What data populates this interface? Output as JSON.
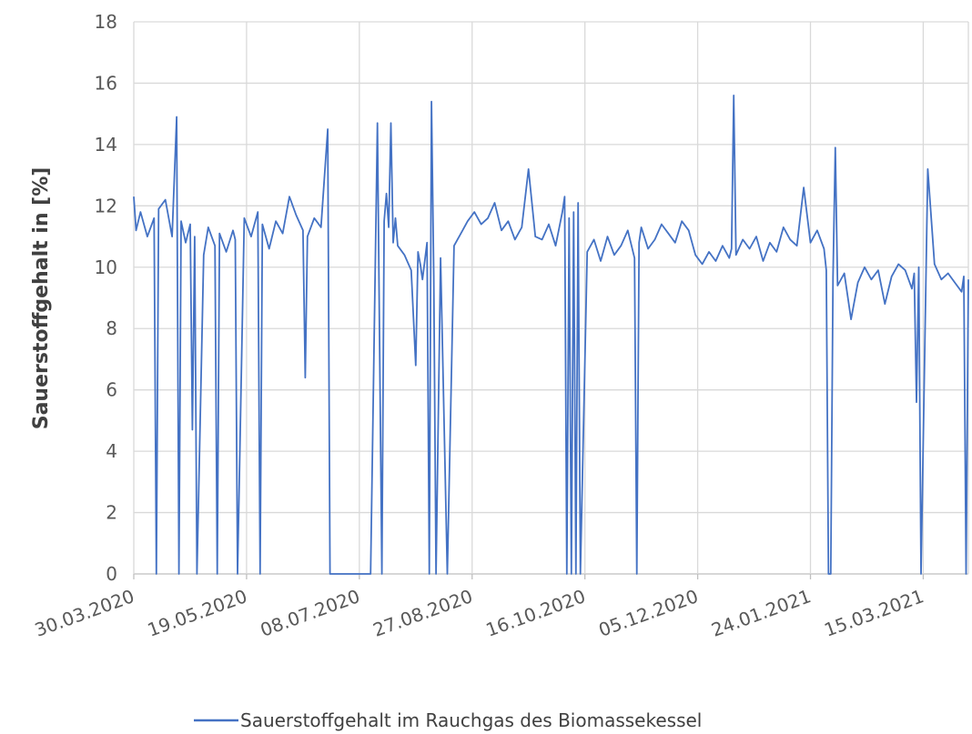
{
  "chart_data": {
    "type": "line",
    "title": "",
    "ylabel": "Sauerstoffgehalt in [%]",
    "xlabel": "",
    "ylim": [
      0,
      18
    ],
    "yticks": [
      0,
      2,
      4,
      6,
      8,
      10,
      12,
      14,
      16,
      18
    ],
    "xlim": [
      "30.03.2020",
      "04.04.2021"
    ],
    "xticks": [
      "30.03.2020",
      "19.05.2020",
      "08.07.2020",
      "27.08.2020",
      "16.10.2020",
      "05.12.2020",
      "24.01.2021",
      "15.03.2021"
    ],
    "grid": true,
    "legend_position": "bottom",
    "colors": {
      "series": "#4472C4",
      "grid": "#D9D9D9",
      "axis": "#BFBFBF"
    },
    "series": [
      {
        "name": "Sauerstoffgehalt im Rauchgas des Biomassekessel",
        "x": [
          "30.03.2020",
          "31.03.2020",
          "02.04.2020",
          "05.04.2020",
          "08.04.2020",
          "09.04.2020",
          "10.04.2020",
          "13.04.2020",
          "16.04.2020",
          "18.04.2020",
          "19.04.2020",
          "20.04.2020",
          "22.04.2020",
          "24.04.2020",
          "25.04.2020",
          "26.04.2020",
          "27.04.2020",
          "30.04.2020",
          "02.05.2020",
          "05.05.2020",
          "06.05.2020",
          "07.05.2020",
          "10.05.2020",
          "13.05.2020",
          "14.05.2020",
          "15.05.2020",
          "18.05.2020",
          "21.05.2020",
          "24.05.2020",
          "25.05.2020",
          "26.05.2020",
          "29.05.2020",
          "01.06.2020",
          "04.06.2020",
          "07.06.2020",
          "10.06.2020",
          "13.06.2020",
          "14.06.2020",
          "15.06.2020",
          "18.06.2020",
          "21.06.2020",
          "24.06.2020",
          "25.06.2020",
          "26.06.2020",
          "27.06.2020",
          "28.06.2020",
          "29.06.2020",
          "30.06.2020",
          "01.07.2020",
          "02.07.2020",
          "04.07.2020",
          "07.07.2020",
          "10.07.2020",
          "13.07.2020",
          "16.07.2020",
          "18.07.2020",
          "19.07.2020",
          "20.07.2020",
          "21.07.2020",
          "22.07.2020",
          "23.07.2020",
          "24.07.2020",
          "25.07.2020",
          "28.07.2020",
          "31.07.2020",
          "02.08.2020",
          "03.08.2020",
          "04.08.2020",
          "05.08.2020",
          "06.08.2020",
          "07.08.2020",
          "08.08.2020",
          "09.08.2020",
          "10.08.2020",
          "11.08.2020",
          "13.08.2020",
          "16.08.2020",
          "19.08.2020",
          "22.08.2020",
          "25.08.2020",
          "28.08.2020",
          "31.08.2020",
          "03.09.2020",
          "06.09.2020",
          "09.09.2020",
          "12.09.2020",
          "15.09.2020",
          "18.09.2020",
          "21.09.2020",
          "24.09.2020",
          "27.09.2020",
          "30.09.2020",
          "03.10.2020",
          "06.10.2020",
          "07.10.2020",
          "08.10.2020",
          "09.10.2020",
          "10.10.2020",
          "11.10.2020",
          "12.10.2020",
          "13.10.2020",
          "14.10.2020",
          "17.10.2020",
          "20.10.2020",
          "23.10.2020",
          "26.10.2020",
          "29.10.2020",
          "01.11.2020",
          "04.11.2020",
          "07.11.2020",
          "08.11.2020",
          "09.11.2020",
          "10.11.2020",
          "13.11.2020",
          "16.11.2020",
          "19.11.2020",
          "22.11.2020",
          "25.11.2020",
          "28.11.2020",
          "01.12.2020",
          "04.12.2020",
          "07.12.2020",
          "10.12.2020",
          "13.12.2020",
          "16.12.2020",
          "19.12.2020",
          "20.12.2020",
          "21.12.2020",
          "22.12.2020",
          "25.12.2020",
          "28.12.2020",
          "31.12.2020",
          "03.01.2021",
          "06.01.2021",
          "09.01.2021",
          "12.01.2021",
          "15.01.2021",
          "18.01.2021",
          "21.01.2021",
          "24.01.2021",
          "27.01.2021",
          "30.01.2021",
          "31.01.2021",
          "01.02.2021",
          "02.02.2021",
          "03.02.2021",
          "04.02.2021",
          "05.02.2021",
          "08.02.2021",
          "11.02.2021",
          "14.02.2021",
          "17.02.2021",
          "20.02.2021",
          "23.02.2021",
          "26.02.2021",
          "01.03.2021",
          "04.03.2021",
          "07.03.2021",
          "10.03.2021",
          "11.03.2021",
          "12.03.2021",
          "13.03.2021",
          "14.03.2021",
          "17.03.2021",
          "20.03.2021",
          "23.03.2021",
          "26.03.2021",
          "29.03.2021",
          "01.04.2021",
          "02.04.2021",
          "03.04.2021",
          "04.04.2021"
        ],
        "values": [
          12.3,
          11.2,
          11.8,
          11.0,
          11.6,
          0,
          11.9,
          12.2,
          11.0,
          14.9,
          0,
          11.5,
          10.8,
          11.4,
          4.7,
          11.0,
          0,
          10.4,
          11.3,
          10.7,
          0,
          11.1,
          10.5,
          11.2,
          10.9,
          0,
          11.6,
          11.0,
          11.8,
          0,
          11.4,
          10.6,
          11.5,
          11.1,
          12.3,
          11.7,
          11.2,
          6.4,
          11.0,
          11.6,
          11.3,
          14.5,
          0,
          0,
          0,
          0,
          0,
          0,
          0,
          0,
          0,
          0,
          0,
          0,
          14.7,
          0,
          11.5,
          12.4,
          11.3,
          14.7,
          10.8,
          11.6,
          10.7,
          10.4,
          9.9,
          6.8,
          10.5,
          10.1,
          9.6,
          10.2,
          10.8,
          0,
          15.4,
          9.7,
          0,
          10.3,
          0,
          10.7,
          11.1,
          11.5,
          11.8,
          11.4,
          11.6,
          12.1,
          11.2,
          11.5,
          10.9,
          11.3,
          13.2,
          11.0,
          10.9,
          11.4,
          10.7,
          11.8,
          12.3,
          0,
          11.6,
          0,
          11.8,
          0,
          12.1,
          0,
          10.5,
          10.9,
          10.2,
          11.0,
          10.4,
          10.7,
          11.2,
          10.3,
          0,
          10.8,
          11.3,
          10.6,
          10.9,
          11.4,
          11.1,
          10.8,
          11.5,
          11.2,
          10.4,
          10.1,
          10.5,
          10.2,
          10.7,
          10.3,
          10.6,
          15.6,
          10.4,
          10.9,
          10.6,
          11.0,
          10.2,
          10.8,
          10.5,
          11.3,
          10.9,
          10.7,
          12.6,
          10.8,
          11.2,
          10.6,
          9.9,
          0,
          0,
          9.7,
          13.9,
          9.4,
          9.8,
          8.3,
          9.5,
          10.0,
          9.6,
          9.9,
          8.8,
          9.7,
          10.1,
          9.9,
          9.3,
          9.8,
          5.6,
          10.0,
          0,
          13.2,
          10.1,
          9.6,
          9.8,
          9.5,
          9.2,
          9.7,
          0,
          9.6
        ]
      }
    ]
  }
}
